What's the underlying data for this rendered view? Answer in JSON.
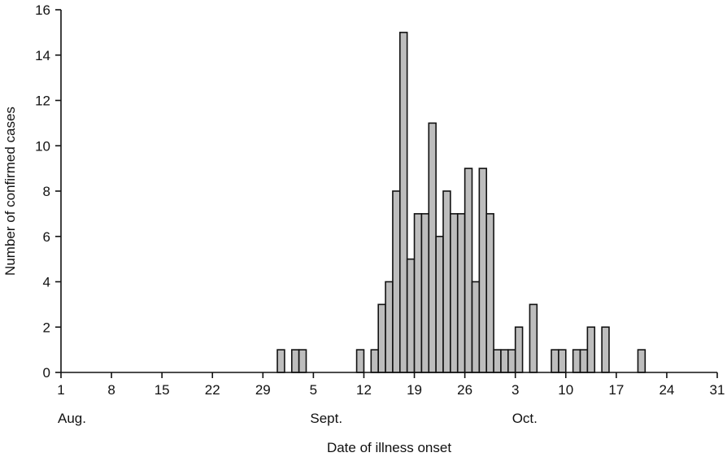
{
  "chart_data": {
    "type": "bar",
    "title": "",
    "xlabel": "Date of illness onset",
    "ylabel": "Number of confirmed cases",
    "ylim": [
      0,
      16
    ],
    "yticks": [
      0,
      2,
      4,
      6,
      8,
      10,
      12,
      14,
      16
    ],
    "xlim_days": [
      1,
      92
    ],
    "x_tick_labels": [
      {
        "day": 1,
        "label": "1"
      },
      {
        "day": 8,
        "label": "8"
      },
      {
        "day": 15,
        "label": "15"
      },
      {
        "day": 22,
        "label": "22"
      },
      {
        "day": 29,
        "label": "29"
      },
      {
        "day": 36,
        "label": "5"
      },
      {
        "day": 43,
        "label": "12"
      },
      {
        "day": 50,
        "label": "19"
      },
      {
        "day": 57,
        "label": "26"
      },
      {
        "day": 64,
        "label": "3"
      },
      {
        "day": 71,
        "label": "10"
      },
      {
        "day": 78,
        "label": "17"
      },
      {
        "day": 85,
        "label": "24"
      },
      {
        "day": 92,
        "label": "31"
      }
    ],
    "month_labels": [
      {
        "day": 1,
        "label": "Aug."
      },
      {
        "day": 36,
        "label": "Sept."
      },
      {
        "day": 64,
        "label": "Oct."
      }
    ],
    "grid": false,
    "bar_color": "#bdbdbd",
    "edge_color": "#111111",
    "bars": [
      {
        "day": 32,
        "value": 1
      },
      {
        "day": 34,
        "value": 1
      },
      {
        "day": 35,
        "value": 1
      },
      {
        "day": 43,
        "value": 1
      },
      {
        "day": 45,
        "value": 1
      },
      {
        "day": 46,
        "value": 3
      },
      {
        "day": 47,
        "value": 4
      },
      {
        "day": 48,
        "value": 8
      },
      {
        "day": 49,
        "value": 15
      },
      {
        "day": 50,
        "value": 5
      },
      {
        "day": 51,
        "value": 7
      },
      {
        "day": 52,
        "value": 7
      },
      {
        "day": 53,
        "value": 11
      },
      {
        "day": 54,
        "value": 6
      },
      {
        "day": 55,
        "value": 8
      },
      {
        "day": 56,
        "value": 7
      },
      {
        "day": 57,
        "value": 7
      },
      {
        "day": 58,
        "value": 9
      },
      {
        "day": 59,
        "value": 4
      },
      {
        "day": 60,
        "value": 9
      },
      {
        "day": 61,
        "value": 7
      },
      {
        "day": 62,
        "value": 1
      },
      {
        "day": 63,
        "value": 1
      },
      {
        "day": 64,
        "value": 1
      },
      {
        "day": 65,
        "value": 2
      },
      {
        "day": 67,
        "value": 3
      },
      {
        "day": 70,
        "value": 1
      },
      {
        "day": 71,
        "value": 1
      },
      {
        "day": 73,
        "value": 1
      },
      {
        "day": 74,
        "value": 1
      },
      {
        "day": 75,
        "value": 2
      },
      {
        "day": 77,
        "value": 2
      },
      {
        "day": 82,
        "value": 1
      }
    ]
  }
}
